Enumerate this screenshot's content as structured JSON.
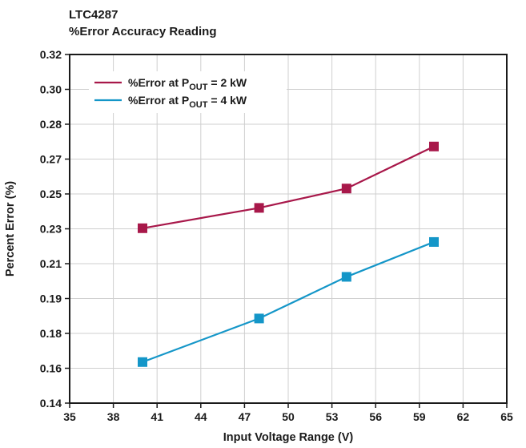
{
  "chart_data": {
    "type": "line",
    "title": "LTC4287",
    "subtitle": "%Error Accuracy Reading",
    "xlabel": "Input Voltage Range (V)",
    "ylabel": "Percent Error (%)",
    "xlim": [
      35,
      65
    ],
    "ylim": [
      0.14,
      0.32
    ],
    "x_ticks": [
      "35",
      "38",
      "41",
      "44",
      "47",
      "50",
      "53",
      "56",
      "59",
      "62",
      "65"
    ],
    "y_ticks": [
      "0.14",
      "0.16",
      "0.18",
      "0.19",
      "0.21",
      "0.23",
      "0.25",
      "0.27",
      "0.28",
      "0.30",
      "0.32"
    ],
    "grid": true,
    "legend_position": "top-left",
    "series": [
      {
        "name_parts": [
          "%Error at P",
          "OUT",
          " = 2 kW"
        ],
        "color": "#a8184a",
        "marker": "square",
        "x": [
          40,
          48,
          54,
          60
        ],
        "y": [
          0.2303,
          0.2408,
          0.2508,
          0.2725
        ]
      },
      {
        "name_parts": [
          "%Error at P",
          "OUT",
          " = 4 kW"
        ],
        "color": "#1496c8",
        "marker": "square",
        "x": [
          40,
          48,
          54,
          60
        ],
        "y": [
          0.1612,
          0.1837,
          0.2052,
          0.2232
        ]
      }
    ]
  }
}
